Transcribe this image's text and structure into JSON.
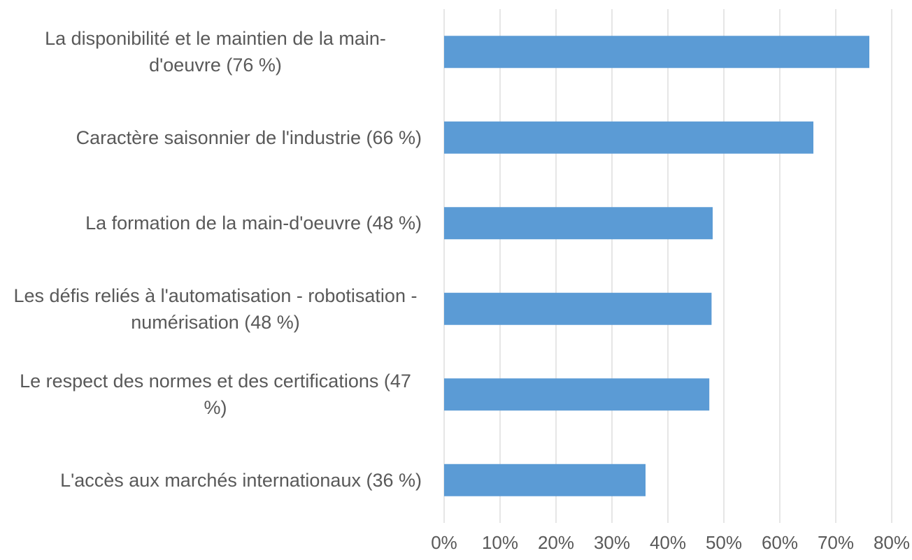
{
  "chart_data": {
    "type": "bar",
    "orientation": "horizontal",
    "categories": [
      "La disponibilité et le maintien de la main-d'oeuvre (76 %)",
      "Caractère saisonnier de l'industrie (66 %)",
      "La formation de la main-d'oeuvre (48 %)",
      "Les défis reliés à l'automatisation - robotisation - numérisation (48 %)",
      "Le respect des normes et des certifications (47 %)",
      "L'accès aux marchés internationaux (36 %)"
    ],
    "values": [
      76,
      66,
      48,
      47.8,
      47.4,
      36
    ],
    "color": "#5b9bd5",
    "xlim": [
      0,
      80
    ],
    "xticks": [
      {
        "value": 0,
        "label": "0%"
      },
      {
        "value": 10,
        "label": "10%"
      },
      {
        "value": 20,
        "label": "20%"
      },
      {
        "value": 30,
        "label": "30%"
      },
      {
        "value": 40,
        "label": "40%"
      },
      {
        "value": 50,
        "label": "50%"
      },
      {
        "value": 60,
        "label": "60%"
      },
      {
        "value": 70,
        "label": "70%"
      },
      {
        "value": 80,
        "label": "80%"
      }
    ],
    "grid": true
  }
}
